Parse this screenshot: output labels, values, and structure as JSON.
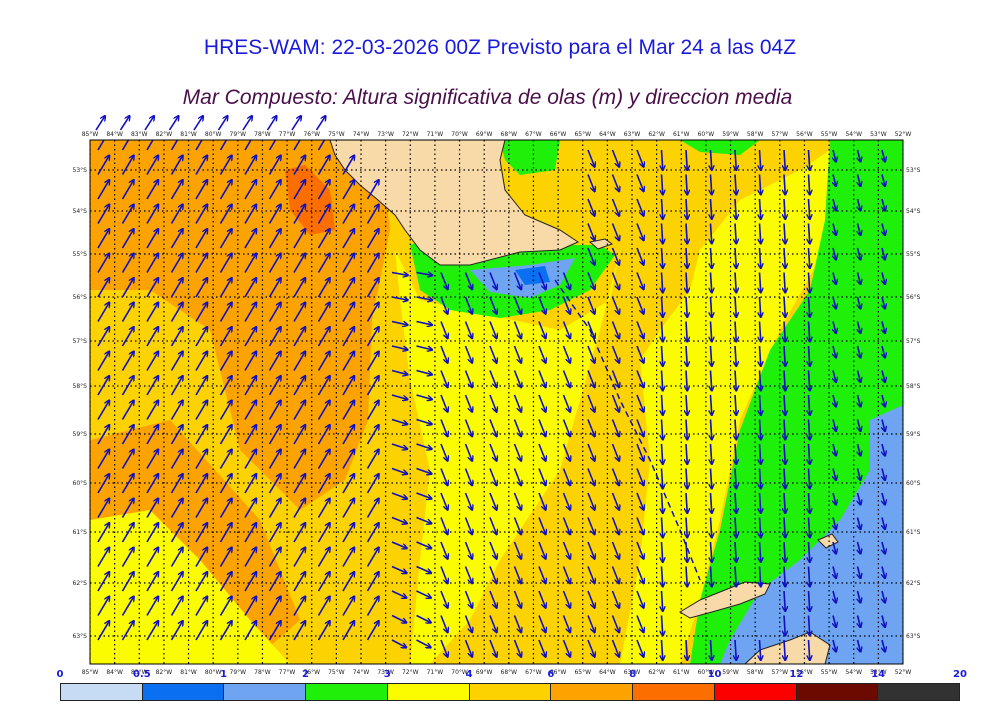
{
  "title": "HRES-WAM: 22-03-2026 00Z Previsto para el Mar 24 a las 04Z",
  "subtitle": "Mar Compuesto: Altura significativa de olas (m) y direccion media",
  "map": {
    "lon_labels": [
      "85°W",
      "84°W",
      "83°W",
      "82°W",
      "81°W",
      "80°W",
      "79°W",
      "78°W",
      "77°W",
      "76°W",
      "75°W",
      "74°W",
      "73°W",
      "72°W",
      "71°W",
      "70°W",
      "69°W",
      "68°W",
      "67°W",
      "66°W",
      "65°W",
      "64°W",
      "63°W",
      "62°W",
      "61°W",
      "60°W",
      "59°W",
      "58°W",
      "57°W",
      "56°W",
      "55°W",
      "54°W",
      "53°W",
      "52°W"
    ],
    "lat_labels": [
      "53°S",
      "54°S",
      "55°S",
      "56°S",
      "57°S",
      "58°S",
      "59°S",
      "60°S",
      "61°S",
      "62°S",
      "63°S"
    ],
    "colors": {
      "land": "#f8d9a8",
      "coast": "#222222",
      "arrow": "#1010c0",
      "grid": "#000000"
    }
  },
  "legend": {
    "labels": [
      "0",
      "0.5",
      "1",
      "2",
      "3",
      "4",
      "6",
      "8",
      "10",
      "12",
      "14",
      "20"
    ],
    "colors": [
      "#c6dcf4",
      "#0a6ff0",
      "#6fa4f2",
      "#1ef00a",
      "#fcfc00",
      "#fcd200",
      "#fca300",
      "#fc6e00",
      "#fc0000",
      "#6c0a00",
      "#323232"
    ]
  }
}
